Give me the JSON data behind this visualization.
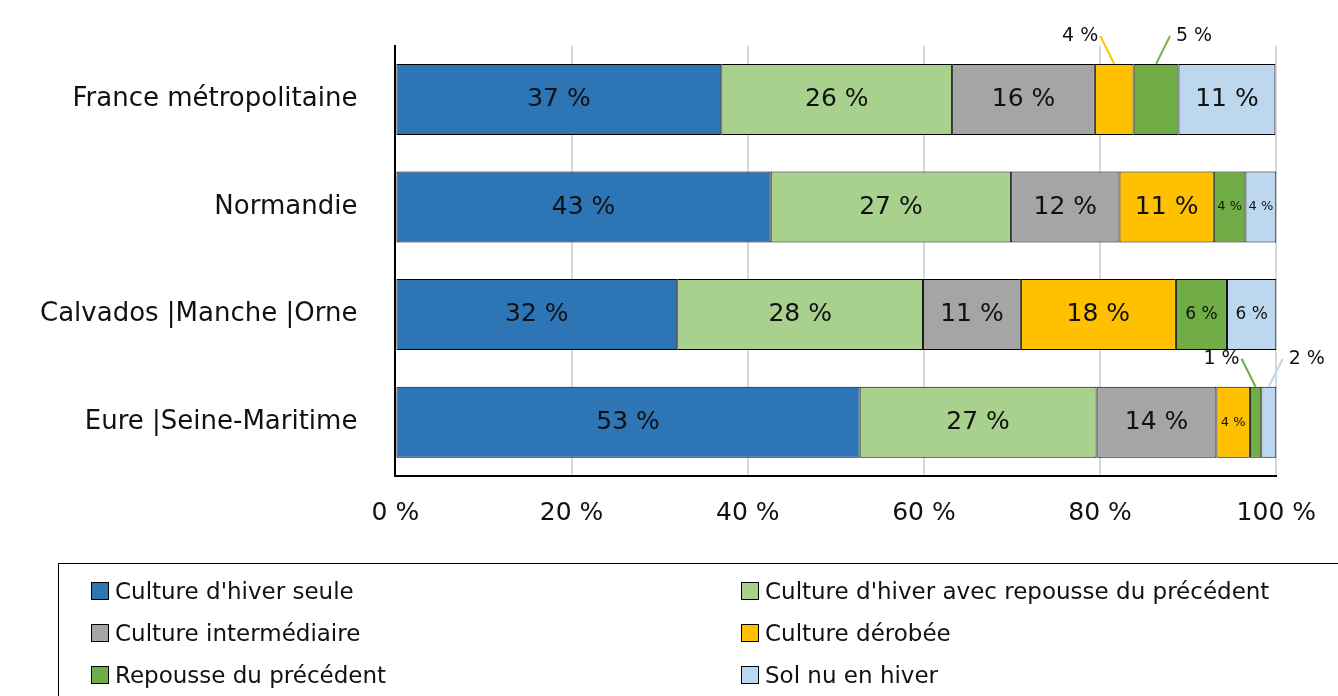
{
  "chart_data": {
    "type": "bar",
    "orientation": "horizontal",
    "stacked": true,
    "categories": [
      "France métropolitaine",
      "Normandie",
      "Calvados |Manche |Orne",
      "Eure |Seine-Maritime"
    ],
    "series": [
      {
        "name": "Culture d'hiver seule",
        "color": "#2e75b6",
        "values": [
          37.0,
          42.6,
          32.0,
          52.7
        ],
        "value_labels": [
          "37 %",
          "43 %",
          "32 %",
          "53 %"
        ]
      },
      {
        "name": "Culture d'hiver avec repousse du précédent",
        "color": "#a9d18e",
        "values": [
          26.2,
          27.3,
          27.9,
          26.9
        ],
        "value_labels": [
          "26 %",
          "27 %",
          "28 %",
          "27 %"
        ]
      },
      {
        "name": "Culture intermédiaire",
        "color": "#a5a5a5",
        "values": [
          16.2,
          12.3,
          11.1,
          13.6
        ],
        "value_labels": [
          "16 %",
          "12 %",
          "11 %",
          "14 %"
        ]
      },
      {
        "name": "Culture dérobée",
        "color": "#ffc000",
        "values": [
          4.4,
          10.7,
          17.6,
          3.8
        ],
        "value_labels": [
          "4 %",
          "11 %",
          "18 %",
          "4 %"
        ]
      },
      {
        "name": "Repousse du précédent",
        "color": "#70ad47",
        "values": [
          5.1,
          3.6,
          5.8,
          1.3
        ],
        "value_labels": [
          "5 %",
          "4 %",
          "6 %",
          "1 %"
        ]
      },
      {
        "name": "Sol nu en hiver",
        "color": "#bdd7ee",
        "values": [
          11.0,
          3.5,
          5.6,
          1.7
        ],
        "value_labels": [
          "11 %",
          "4 %",
          "6 %",
          "2 %"
        ]
      }
    ],
    "xlim": [
      0,
      100
    ],
    "xticks": [
      {
        "value": 0,
        "label": "0 %"
      },
      {
        "value": 20,
        "label": "20 %"
      },
      {
        "value": 40,
        "label": "40 %"
      },
      {
        "value": 60,
        "label": "60 %"
      },
      {
        "value": 80,
        "label": "80 %"
      },
      {
        "value": 100,
        "label": "100 %"
      }
    ],
    "grid": "x",
    "legend": "bottom"
  }
}
